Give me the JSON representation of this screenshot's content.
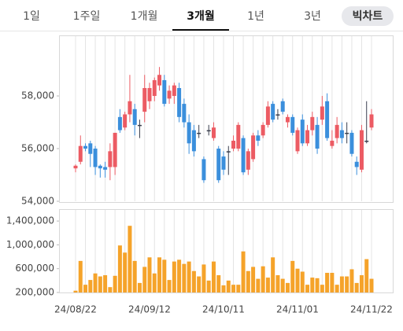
{
  "tabs": {
    "items": [
      "1일",
      "1주일",
      "1개월",
      "3개월",
      "1년",
      "3년"
    ],
    "selected": 3,
    "button": "빅차트"
  },
  "chart_data": [
    {
      "type": "candlestick",
      "categories": [
        "24/08/22",
        null,
        null,
        null,
        null,
        null,
        null,
        null,
        null,
        null,
        null,
        null,
        null,
        null,
        null,
        "24/09/12",
        null,
        null,
        null,
        null,
        null,
        null,
        null,
        null,
        null,
        null,
        null,
        null,
        null,
        null,
        "24/10/11",
        null,
        null,
        null,
        null,
        null,
        null,
        null,
        null,
        null,
        null,
        null,
        null,
        null,
        null,
        "24/11/01",
        null,
        null,
        null,
        null,
        null,
        null,
        null,
        null,
        null,
        null,
        null,
        null,
        null,
        null,
        "24/11/22"
      ],
      "open": [
        55250,
        55500,
        56100,
        56200,
        56000,
        55350,
        55300,
        55300,
        55300,
        57200,
        56800,
        57300,
        57500,
        56900,
        57400,
        57800,
        58000,
        58400,
        58600,
        57900,
        58000,
        58300,
        57700,
        57000,
        56700,
        56600,
        55600,
        56700,
        56400,
        56000,
        55700,
        55900,
        56000,
        56000,
        56400,
        55200,
        55600,
        56500,
        56500,
        56900,
        57700,
        57300,
        57800,
        57000,
        57200,
        55900,
        57100,
        56200,
        56700,
        56900,
        57100,
        57800,
        56100,
        56400,
        56700,
        56600,
        56600,
        55500,
        55200,
        56300,
        56800
      ],
      "high": [
        55400,
        56500,
        56200,
        56300,
        56100,
        55400,
        55500,
        56200,
        56600,
        57500,
        57400,
        58800,
        57700,
        57100,
        58800,
        58500,
        58700,
        59100,
        58800,
        58400,
        58500,
        58500,
        57900,
        57300,
        56900,
        56900,
        55700,
        56900,
        57000,
        56100,
        55900,
        56100,
        56500,
        57000,
        56500,
        56000,
        56600,
        56700,
        57000,
        57800,
        57800,
        57500,
        57900,
        57300,
        57300,
        56800,
        57300,
        56900,
        57400,
        57200,
        58000,
        58100,
        56700,
        57200,
        57000,
        57000,
        56700,
        55700,
        56900,
        57800,
        57500
      ],
      "low": [
        55100,
        55400,
        55900,
        55300,
        55000,
        54900,
        54900,
        54800,
        55000,
        56600,
        56700,
        57000,
        56500,
        56400,
        57000,
        57500,
        57800,
        58200,
        57600,
        57700,
        57700,
        57000,
        56800,
        55800,
        55700,
        56400,
        54700,
        56500,
        56300,
        54700,
        55000,
        55000,
        55900,
        55900,
        55000,
        55000,
        55500,
        56100,
        56400,
        56800,
        57000,
        57100,
        57300,
        56800,
        56500,
        55800,
        56100,
        56100,
        56500,
        55800,
        56900,
        56300,
        56000,
        56200,
        56200,
        56200,
        55700,
        55000,
        55100,
        56200,
        56700
      ],
      "close": [
        55350,
        56100,
        56000,
        55800,
        55300,
        55250,
        55200,
        55900,
        56600,
        56700,
        57300,
        57800,
        56900,
        56900,
        58300,
        58300,
        58600,
        58800,
        57700,
        58200,
        58400,
        57200,
        57000,
        56200,
        55900,
        56600,
        54800,
        56700,
        56800,
        54800,
        55200,
        55900,
        56300,
        56900,
        55100,
        55900,
        56500,
        56300,
        56900,
        57600,
        57100,
        57300,
        57400,
        57200,
        56600,
        56700,
        56200,
        56700,
        57200,
        56000,
        57600,
        56400,
        56300,
        56900,
        56400,
        56600,
        55800,
        55300,
        56700,
        56300,
        57300
      ],
      "up_color": "#ec5b63",
      "down_color": "#3b8fdc",
      "flat_color": "#3a3f4e",
      "ylim": [
        54000,
        60300
      ],
      "yticks": [
        {
          "value": 54000,
          "label": "54,000"
        },
        {
          "value": 56000,
          "label": "56,000"
        },
        {
          "value": 58000,
          "label": "58,000"
        }
      ]
    },
    {
      "type": "bar",
      "values": [
        230000,
        730000,
        330000,
        410000,
        520000,
        470000,
        490000,
        290000,
        480000,
        990000,
        870000,
        1320000,
        730000,
        360000,
        630000,
        790000,
        520000,
        790000,
        750000,
        410000,
        720000,
        750000,
        680000,
        720000,
        560000,
        470000,
        670000,
        400000,
        720000,
        490000,
        320000,
        400000,
        330000,
        330000,
        890000,
        560000,
        630000,
        430000,
        640000,
        450000,
        790000,
        490000,
        430000,
        360000,
        730000,
        600000,
        550000,
        330000,
        450000,
        440000,
        330000,
        530000,
        530000,
        330000,
        470000,
        470000,
        590000,
        360000,
        490000,
        760000,
        430000
      ],
      "color": "#f5a32a",
      "ylim": [
        200000,
        1600000
      ],
      "yticks": [
        {
          "value": 200000,
          "label": "200,000"
        },
        {
          "value": 600000,
          "label": "600,000"
        },
        {
          "value": 1000000,
          "label": "1,000,000"
        },
        {
          "value": 1400000,
          "label": "1,400,000"
        }
      ]
    }
  ]
}
